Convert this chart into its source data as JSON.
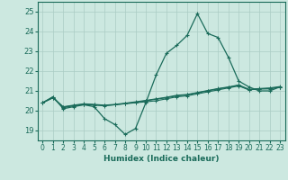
{
  "xlabel": "Humidex (Indice chaleur)",
  "xlim": [
    -0.5,
    23.5
  ],
  "ylim": [
    18.5,
    25.5
  ],
  "yticks": [
    19,
    20,
    21,
    22,
    23,
    24,
    25
  ],
  "xticks": [
    0,
    1,
    2,
    3,
    4,
    5,
    6,
    7,
    8,
    9,
    10,
    11,
    12,
    13,
    14,
    15,
    16,
    17,
    18,
    19,
    20,
    21,
    22,
    23
  ],
  "background_color": "#cce8e0",
  "grid_color": "#aaccC4",
  "line_color": "#1a6b5a",
  "lines": [
    [
      20.4,
      20.7,
      20.1,
      20.2,
      20.3,
      20.2,
      19.6,
      19.3,
      18.8,
      19.1,
      20.4,
      21.8,
      22.9,
      23.3,
      23.8,
      24.9,
      23.9,
      23.7,
      22.7,
      21.5,
      21.2,
      21.0,
      21.0,
      21.2
    ],
    [
      20.4,
      20.7,
      20.15,
      20.25,
      20.3,
      20.28,
      20.25,
      20.3,
      20.35,
      20.4,
      20.45,
      20.5,
      20.6,
      20.7,
      20.75,
      20.85,
      20.95,
      21.05,
      21.15,
      21.25,
      21.05,
      21.1,
      21.1,
      21.2
    ],
    [
      20.4,
      20.65,
      20.2,
      20.28,
      20.35,
      20.32,
      20.28,
      20.32,
      20.38,
      20.45,
      20.52,
      20.6,
      20.68,
      20.78,
      20.82,
      20.92,
      21.02,
      21.12,
      21.2,
      21.3,
      21.08,
      21.12,
      21.15,
      21.22
    ],
    [
      20.4,
      20.65,
      20.18,
      20.26,
      20.32,
      20.3,
      20.26,
      20.3,
      20.36,
      20.42,
      20.5,
      20.58,
      20.65,
      20.75,
      20.8,
      20.9,
      21.0,
      21.1,
      21.18,
      21.28,
      21.06,
      21.1,
      21.12,
      21.18
    ]
  ]
}
